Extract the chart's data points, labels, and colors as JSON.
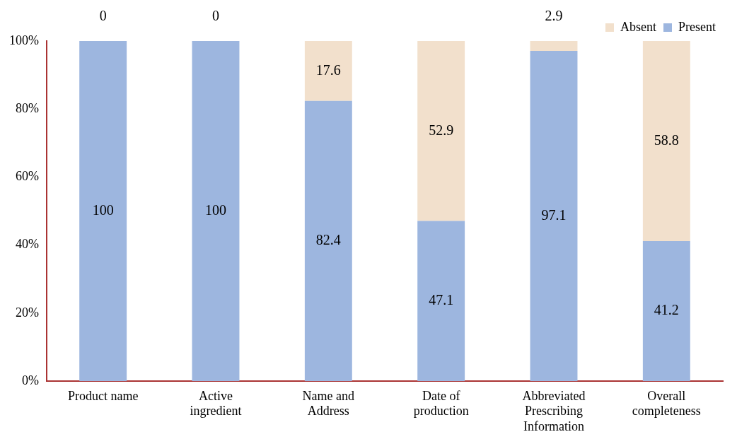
{
  "chart_data": {
    "type": "bar",
    "stacked": true,
    "categories": [
      "Product name",
      "Active ingredient",
      "Name and Address",
      "Date of production",
      "Abbreviated Prescribing Information",
      "Overall completeness"
    ],
    "series": [
      {
        "name": "Present",
        "color": "#9db6df",
        "values": [
          100,
          100,
          82.4,
          47.1,
          97.1,
          41.2
        ]
      },
      {
        "name": "Absent",
        "color": "#f2e0cc",
        "values": [
          0,
          0,
          17.6,
          52.9,
          2.9,
          58.8
        ]
      }
    ],
    "ylim": [
      0,
      100
    ],
    "yticks": [
      {
        "value": 0,
        "label": "0%"
      },
      {
        "value": 20,
        "label": "20%"
      },
      {
        "value": 40,
        "label": "40%"
      },
      {
        "value": 60,
        "label": "60%"
      },
      {
        "value": 80,
        "label": "80%"
      },
      {
        "value": 100,
        "label": "100%"
      }
    ],
    "grid": false,
    "legend": "top right",
    "data_labels": true
  }
}
